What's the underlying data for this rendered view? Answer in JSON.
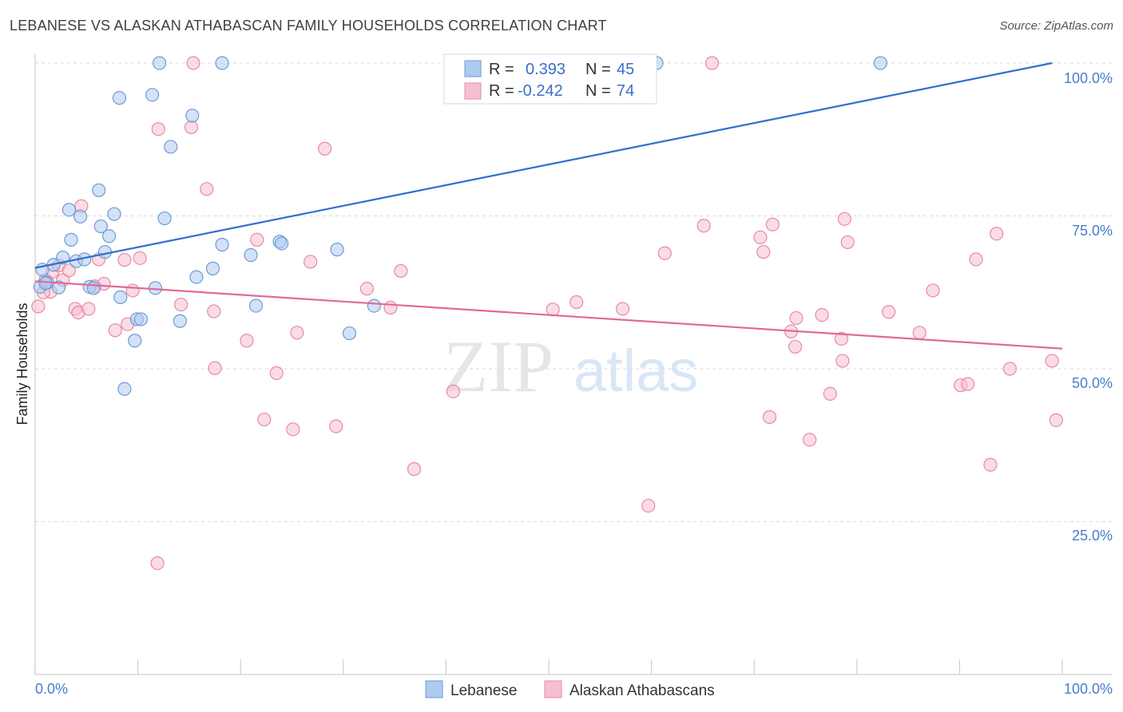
{
  "header": {
    "title": "LEBANESE VS ALASKAN ATHABASCAN FAMILY HOUSEHOLDS CORRELATION CHART",
    "source": "Source: ZipAtlas.com"
  },
  "watermark": {
    "zip": "ZIP",
    "atlas": "atlas"
  },
  "colors": {
    "blue_fill": "#aecbf0",
    "blue_stroke": "#6f9ad6",
    "blue_line": "#2f6fcf",
    "pink_fill": "#f6bfd0",
    "pink_stroke": "#e889a8",
    "pink_line": "#e06a97",
    "tick_text": "#4a7cc9",
    "grid": "#d9d9d9"
  },
  "legend": {
    "rows": [
      {
        "r_label": "R =",
        "r_value": "0.393",
        "n_label": "N =",
        "n_value": "45"
      },
      {
        "r_label": "R =",
        "r_value": "-0.242",
        "n_label": "N =",
        "n_value": "74"
      }
    ]
  },
  "bottom_legend": [
    "Lebanese",
    "Alaskan Athabascans"
  ],
  "chart_data": {
    "type": "scatter",
    "title": "LEBANESE VS ALASKAN ATHABASCAN FAMILY HOUSEHOLDS CORRELATION CHART",
    "xlabel": "",
    "ylabel": "Family Households",
    "xlim": [
      0,
      100
    ],
    "ylim": [
      0,
      100
    ],
    "x_tick_labels": [
      "0.0%",
      "100.0%"
    ],
    "y_tick_labels": [
      "100.0%",
      "75.0%",
      "50.0%",
      "25.0%"
    ],
    "y_ticks": [
      100,
      75,
      50,
      25
    ],
    "grid": true,
    "series": [
      {
        "name": "Lebanese",
        "r": 0.393,
        "n": 45,
        "trend": [
          [
            0,
            66.5
          ],
          [
            99,
            100
          ]
        ],
        "points": [
          [
            0.5,
            63.4
          ],
          [
            0.7,
            66.2
          ],
          [
            1.2,
            64.1
          ],
          [
            1.8,
            67.0
          ],
          [
            2.3,
            63.3
          ],
          [
            2.7,
            68.2
          ],
          [
            3.3,
            76.0
          ],
          [
            3.5,
            71.1
          ],
          [
            4.0,
            67.6
          ],
          [
            4.4,
            74.9
          ],
          [
            4.8,
            67.9
          ],
          [
            5.3,
            63.4
          ],
          [
            5.7,
            63.2
          ],
          [
            6.2,
            79.2
          ],
          [
            6.4,
            73.3
          ],
          [
            6.8,
            69.1
          ],
          [
            7.2,
            71.7
          ],
          [
            7.7,
            75.3
          ],
          [
            8.2,
            94.3
          ],
          [
            8.3,
            61.7
          ],
          [
            8.7,
            46.7
          ],
          [
            9.7,
            54.6
          ],
          [
            9.9,
            58.1
          ],
          [
            10.3,
            58.1
          ],
          [
            11.4,
            94.8
          ],
          [
            11.7,
            63.2
          ],
          [
            12.1,
            100
          ],
          [
            12.6,
            74.6
          ],
          [
            13.2,
            86.3
          ],
          [
            14.1,
            57.8
          ],
          [
            15.3,
            91.4
          ],
          [
            15.7,
            65.0
          ],
          [
            17.3,
            66.4
          ],
          [
            18.2,
            100
          ],
          [
            18.2,
            70.3
          ],
          [
            21.0,
            68.6
          ],
          [
            21.5,
            60.3
          ],
          [
            23.8,
            70.8
          ],
          [
            24.0,
            70.5
          ],
          [
            29.4,
            69.5
          ],
          [
            30.6,
            55.8
          ],
          [
            33.0,
            60.3
          ],
          [
            60.5,
            100
          ],
          [
            82.3,
            100
          ],
          [
            1.0,
            64.0
          ]
        ]
      },
      {
        "name": "Alaskan Athabascans",
        "r": -0.242,
        "n": 74,
        "trend": [
          [
            0,
            64.3
          ],
          [
            100,
            53.3
          ]
        ],
        "points": [
          [
            0.3,
            60.2
          ],
          [
            1.0,
            64.5
          ],
          [
            1.5,
            62.6
          ],
          [
            1.7,
            65.9
          ],
          [
            2.3,
            66.9
          ],
          [
            2.7,
            64.5
          ],
          [
            3.3,
            66.1
          ],
          [
            3.9,
            59.8
          ],
          [
            4.2,
            59.2
          ],
          [
            4.5,
            76.6
          ],
          [
            5.2,
            59.8
          ],
          [
            5.8,
            63.5
          ],
          [
            6.2,
            67.9
          ],
          [
            6.7,
            63.9
          ],
          [
            7.8,
            56.3
          ],
          [
            8.7,
            67.8
          ],
          [
            9.0,
            57.3
          ],
          [
            9.5,
            62.8
          ],
          [
            10.2,
            68.1
          ],
          [
            11.9,
            18.2
          ],
          [
            12.0,
            89.2
          ],
          [
            14.2,
            60.5
          ],
          [
            15.2,
            89.5
          ],
          [
            15.4,
            100
          ],
          [
            16.7,
            79.4
          ],
          [
            17.4,
            59.4
          ],
          [
            17.5,
            50.1
          ],
          [
            20.6,
            54.6
          ],
          [
            21.6,
            71.1
          ],
          [
            22.3,
            41.7
          ],
          [
            23.5,
            49.3
          ],
          [
            25.1,
            40.1
          ],
          [
            25.5,
            55.9
          ],
          [
            26.8,
            67.5
          ],
          [
            28.2,
            86.0
          ],
          [
            29.3,
            40.6
          ],
          [
            32.3,
            63.1
          ],
          [
            34.6,
            60.0
          ],
          [
            35.6,
            66.0
          ],
          [
            36.9,
            33.6
          ],
          [
            40.7,
            46.3
          ],
          [
            50.4,
            59.7
          ],
          [
            52.7,
            60.9
          ],
          [
            57.2,
            59.8
          ],
          [
            59.7,
            27.6
          ],
          [
            61.3,
            68.9
          ],
          [
            65.1,
            73.4
          ],
          [
            65.9,
            100
          ],
          [
            70.6,
            71.5
          ],
          [
            70.9,
            69.1
          ],
          [
            71.5,
            42.1
          ],
          [
            71.8,
            73.6
          ],
          [
            73.6,
            56.1
          ],
          [
            74.0,
            53.6
          ],
          [
            74.1,
            58.3
          ],
          [
            75.4,
            38.4
          ],
          [
            76.6,
            58.8
          ],
          [
            77.4,
            45.9
          ],
          [
            78.5,
            54.9
          ],
          [
            78.6,
            51.3
          ],
          [
            78.8,
            74.5
          ],
          [
            79.1,
            70.7
          ],
          [
            83.1,
            59.3
          ],
          [
            86.1,
            55.9
          ],
          [
            87.4,
            62.8
          ],
          [
            90.1,
            47.3
          ],
          [
            90.8,
            47.5
          ],
          [
            91.6,
            67.9
          ],
          [
            93.0,
            34.3
          ],
          [
            93.6,
            72.1
          ],
          [
            94.9,
            50.0
          ],
          [
            99.0,
            51.3
          ],
          [
            99.4,
            41.6
          ],
          [
            0.8,
            62.5
          ]
        ]
      }
    ]
  }
}
